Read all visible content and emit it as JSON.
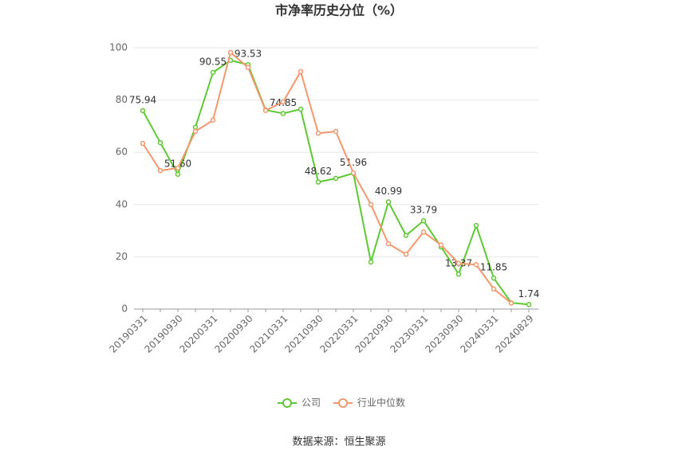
{
  "chart_data": {
    "type": "line",
    "title": "市净率历史分位（%）",
    "categories": [
      "20190331",
      null,
      "20190930",
      null,
      "20200331",
      null,
      "20200930",
      null,
      "20210331",
      null,
      "20210930",
      null,
      "20220331",
      null,
      "20220930",
      null,
      "20230331",
      null,
      "20230930",
      null,
      "20240331",
      null,
      "20240829"
    ],
    "series": [
      {
        "name": "公司",
        "color": "#5ec832",
        "values": [
          75.94,
          63.7,
          51.6,
          69.6,
          90.55,
          95.2,
          93.53,
          76.2,
          74.85,
          76.5,
          48.62,
          50.0,
          51.96,
          18.0,
          40.99,
          28.2,
          33.79,
          23.8,
          13.37,
          32.0,
          11.85,
          2.4,
          1.74
        ],
        "value_labels": [
          "75.94",
          null,
          "51.60",
          null,
          "90.55",
          null,
          "93.53",
          null,
          "74.85",
          null,
          "48.62",
          null,
          "51.96",
          null,
          "40.99",
          null,
          "33.79",
          null,
          "13.37",
          null,
          "11.85",
          null,
          "1.74"
        ]
      },
      {
        "name": "行业中位数",
        "color": "#f4976c",
        "values": [
          63.4,
          53.0,
          54.0,
          68.0,
          72.3,
          98.2,
          92.5,
          76.0,
          79.3,
          90.9,
          67.3,
          68.0,
          52.1,
          40.0,
          25.0,
          21.0,
          29.5,
          24.5,
          17.5,
          17.0,
          7.7,
          2.3,
          null
        ]
      }
    ],
    "ylim": [
      0,
      100
    ],
    "yticks": [
      0,
      20,
      40,
      60,
      80,
      100
    ],
    "grid": true,
    "source": "数据来源：恒生聚源"
  }
}
